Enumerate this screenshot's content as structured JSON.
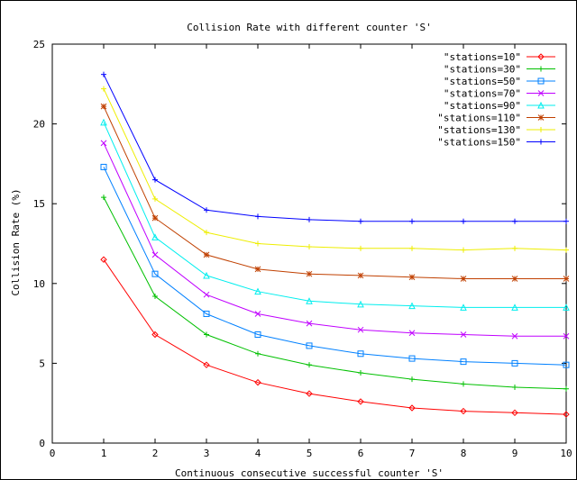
{
  "chart_data": {
    "type": "line",
    "title": "Collision Rate with different counter 'S'",
    "xlabel": "Continuous consecutive successful counter 'S'",
    "ylabel": "Collision Rate (%)",
    "xlim": [
      0,
      10
    ],
    "ylim": [
      0,
      25
    ],
    "x_ticks": [
      "0",
      "1",
      "2",
      "3",
      "4",
      "5",
      "6",
      "7",
      "8",
      "9",
      "10"
    ],
    "y_ticks": [
      "0",
      "5",
      "10",
      "15",
      "20",
      "25"
    ],
    "grid": false,
    "legend_position": "top-right",
    "x": [
      1,
      2,
      3,
      4,
      5,
      6,
      7,
      8,
      9,
      10
    ],
    "series": [
      {
        "name": "\"stations=10\"",
        "color": "#ff0000",
        "marker": "diamond",
        "values": [
          11.5,
          6.8,
          4.9,
          3.8,
          3.1,
          2.6,
          2.2,
          2.0,
          1.9,
          1.8
        ]
      },
      {
        "name": "\"stations=30\"",
        "color": "#00c000",
        "marker": "plus",
        "values": [
          15.4,
          9.2,
          6.8,
          5.6,
          4.9,
          4.4,
          4.0,
          3.7,
          3.5,
          3.4
        ]
      },
      {
        "name": "\"stations=50\"",
        "color": "#0080ff",
        "marker": "square",
        "values": [
          17.3,
          10.6,
          8.1,
          6.8,
          6.1,
          5.6,
          5.3,
          5.1,
          5.0,
          4.9
        ]
      },
      {
        "name": "\"stations=70\"",
        "color": "#c000ff",
        "marker": "cross",
        "values": [
          18.8,
          11.8,
          9.3,
          8.1,
          7.5,
          7.1,
          6.9,
          6.8,
          6.7,
          6.7
        ]
      },
      {
        "name": "\"stations=90\"",
        "color": "#00eeee",
        "marker": "triangle",
        "values": [
          20.1,
          12.9,
          10.5,
          9.5,
          8.9,
          8.7,
          8.6,
          8.5,
          8.5,
          8.5
        ]
      },
      {
        "name": "\"stations=110\"",
        "color": "#c04000",
        "marker": "star",
        "values": [
          21.1,
          14.1,
          11.8,
          10.9,
          10.6,
          10.5,
          10.4,
          10.3,
          10.3,
          10.3
        ]
      },
      {
        "name": "\"stations=130\"",
        "color": "#eeee00",
        "marker": "plus",
        "values": [
          22.2,
          15.3,
          13.2,
          12.5,
          12.3,
          12.2,
          12.2,
          12.1,
          12.2,
          12.1
        ]
      },
      {
        "name": "\"stations=150\"",
        "color": "#0000ff",
        "marker": "plus",
        "values": [
          23.1,
          16.5,
          14.6,
          14.2,
          14.0,
          13.9,
          13.9,
          13.9,
          13.9,
          13.9
        ]
      }
    ]
  }
}
